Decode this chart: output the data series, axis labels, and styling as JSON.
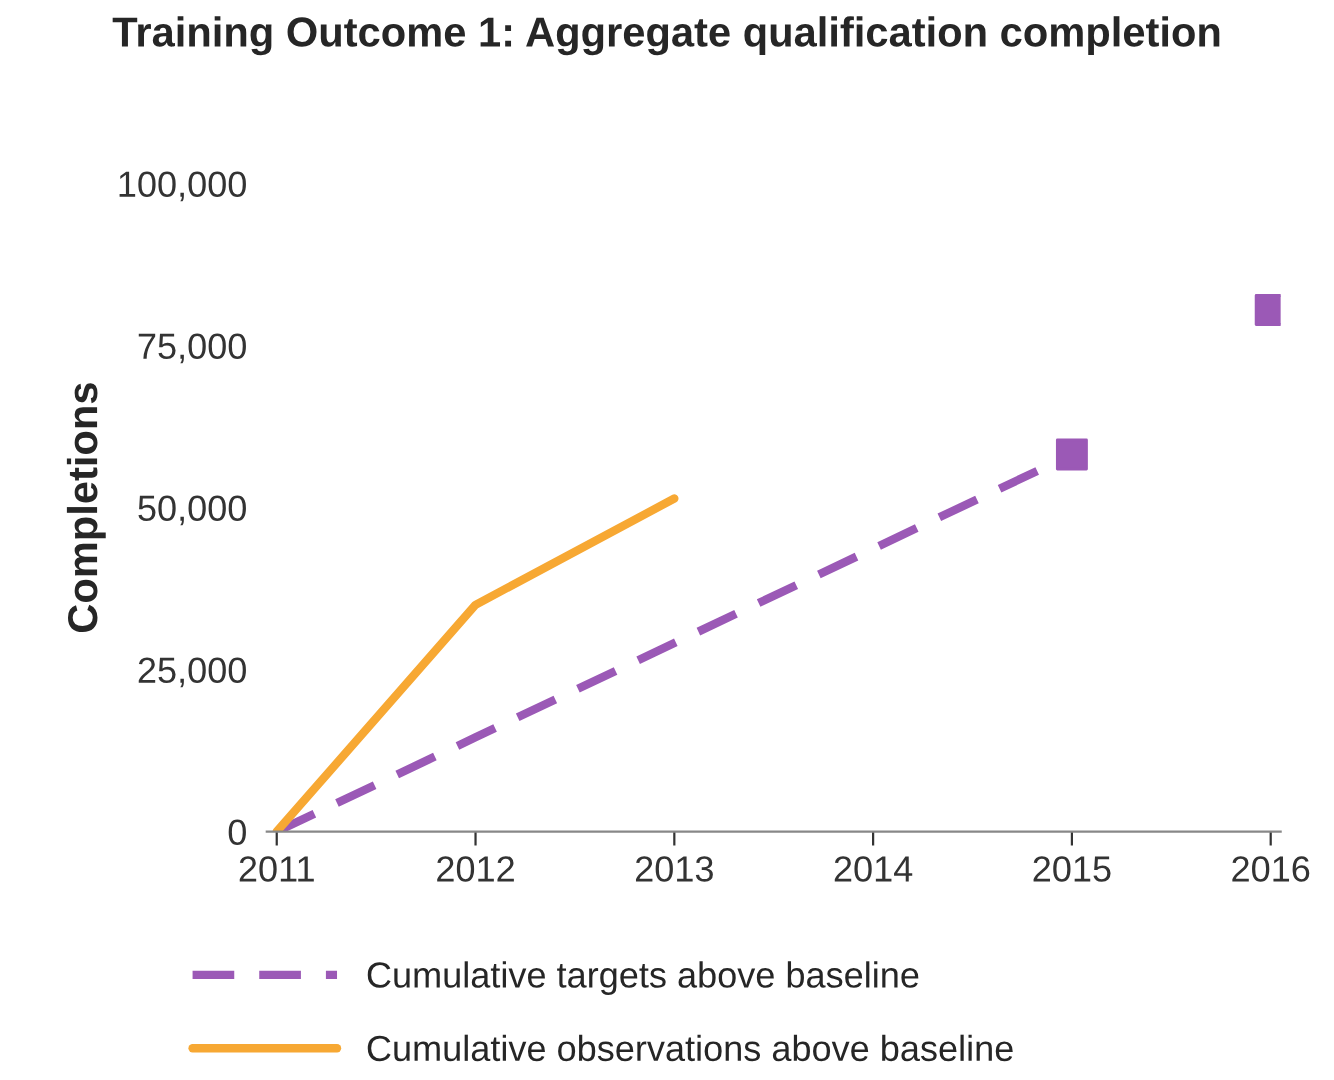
{
  "chart_data": {
    "type": "line",
    "title": "Training Outcome 1: Aggregate qualification completion",
    "ylabel": "Completions",
    "categories": [
      "2011",
      "2012",
      "2013",
      "2014",
      "2015",
      "2016"
    ],
    "series": [
      {
        "name": "Cumulative targets above baseline",
        "color": "#9b59b6",
        "line_style": "dashed",
        "marker": "none",
        "values": [
          0,
          14550,
          29100,
          43650,
          58200,
          null
        ]
      },
      {
        "type": "scatter",
        "color": "#9b59b6",
        "marker": "square",
        "values": [
          null,
          null,
          null,
          null,
          58200,
          80500
        ]
      },
      {
        "name": "Cumulative observations above baseline",
        "color": "#f7a833",
        "line_style": "solid",
        "marker": "none",
        "values": [
          0,
          35000,
          51400,
          null,
          null,
          null
        ]
      }
    ],
    "ylim": [
      0,
      100000
    ],
    "yticks": [
      {
        "value": 0,
        "label": "0"
      },
      {
        "value": 25000,
        "label": "25,000"
      },
      {
        "value": 50000,
        "label": "50,000"
      },
      {
        "value": 75000,
        "label": "75,000"
      },
      {
        "value": 100000,
        "label": "100,000"
      }
    ],
    "grid": false,
    "legend": "bottom"
  }
}
